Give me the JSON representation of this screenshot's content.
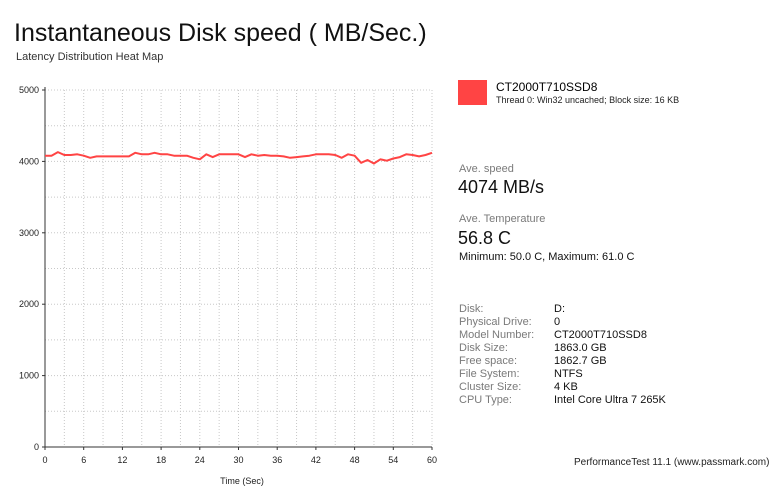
{
  "header": {
    "title": "Instantaneous Disk speed ( MB/Sec.)",
    "subtitle": "Latency Distribution Heat Map"
  },
  "legend": {
    "name": "CT2000T710SSD8",
    "description": "Thread 0: Win32 uncached; Block size: 16 KB",
    "color": "#ff4444"
  },
  "stats": {
    "speed_label": "Ave. speed",
    "speed_value": "4074 MB/s",
    "temp_label": "Ave. Temperature",
    "temp_value": "56.8 C",
    "temp_range": "Minimum: 50.0 C, Maximum: 61.0 C"
  },
  "disk_info": [
    {
      "label": "Disk:",
      "value": "D:"
    },
    {
      "label": "Physical Drive:",
      "value": "0"
    },
    {
      "label": "Model Number:",
      "value": "CT2000T710SSD8"
    },
    {
      "label": "Disk Size:",
      "value": "1863.0 GB"
    },
    {
      "label": "Free space:",
      "value": "1862.7 GB"
    },
    {
      "label": "File System:",
      "value": "NTFS"
    },
    {
      "label": "Cluster Size:",
      "value": "4 KB"
    },
    {
      "label": "CPU Type:",
      "value": "Intel Core Ultra 7 265K"
    }
  ],
  "footer": "PerformanceTest 11.1 (www.passmark.com)",
  "chart_data": {
    "type": "line",
    "title": "Instantaneous Disk speed ( MB/Sec.)",
    "xlabel": "Time (Sec)",
    "ylabel": "",
    "xlim": [
      0,
      60
    ],
    "ylim": [
      0,
      5000
    ],
    "x_ticks": [
      "0",
      "6",
      "12",
      "18",
      "24",
      "30",
      "36",
      "42",
      "48",
      "54",
      "60"
    ],
    "y_ticks": [
      "0",
      "1000",
      "2000",
      "3000",
      "4000",
      "5000"
    ],
    "grid": true,
    "series": [
      {
        "name": "CT2000T710SSD8",
        "color": "#ff4444",
        "x": [
          0,
          1,
          2,
          3,
          4,
          5,
          6,
          7,
          8,
          9,
          10,
          11,
          12,
          13,
          14,
          15,
          16,
          17,
          18,
          19,
          20,
          21,
          22,
          23,
          24,
          25,
          26,
          27,
          28,
          29,
          30,
          31,
          32,
          33,
          34,
          35,
          36,
          37,
          38,
          39,
          40,
          41,
          42,
          43,
          44,
          45,
          46,
          47,
          48,
          49,
          50,
          51,
          52,
          53,
          54,
          55,
          56,
          57,
          58,
          59,
          60
        ],
        "values": [
          4080,
          4080,
          4130,
          4090,
          4090,
          4100,
          4080,
          4050,
          4070,
          4070,
          4070,
          4070,
          4070,
          4070,
          4120,
          4100,
          4100,
          4120,
          4100,
          4100,
          4080,
          4080,
          4080,
          4050,
          4030,
          4100,
          4060,
          4100,
          4100,
          4100,
          4100,
          4060,
          4100,
          4080,
          4090,
          4080,
          4080,
          4070,
          4050,
          4060,
          4070,
          4080,
          4100,
          4100,
          4100,
          4090,
          4050,
          4100,
          4080,
          3980,
          4020,
          3970,
          4030,
          4010,
          4040,
          4060,
          4100,
          4090,
          4070,
          4090,
          4120
        ]
      }
    ]
  }
}
